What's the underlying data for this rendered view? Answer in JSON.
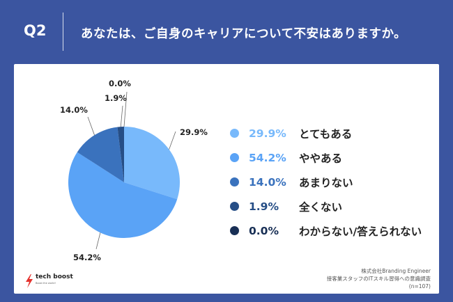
{
  "header": {
    "q_label": "Q2",
    "question": "あなたは、ご自身のキャリアについて不安はありますか。"
  },
  "chart_data": {
    "type": "pie",
    "title": "あなたは、ご自身のキャリアについて不安はありますか。",
    "start_angle_deg": 0,
    "direction": "clockwise",
    "slices": [
      {
        "label": "とてもある",
        "value": 29.9,
        "pct_text": "29.9%",
        "color": "#78b9fb"
      },
      {
        "label": "ややある",
        "value": 54.2,
        "pct_text": "54.2%",
        "color": "#5aa3f6"
      },
      {
        "label": "あまりない",
        "value": 14.0,
        "pct_text": "14.0%",
        "color": "#3a72bd"
      },
      {
        "label": "全くない",
        "value": 1.9,
        "pct_text": "1.9%",
        "color": "#264e86"
      },
      {
        "label": "わからない/答えられない",
        "value": 0.0,
        "pct_text": "0.0%",
        "color": "#182f55"
      }
    ]
  },
  "logo": {
    "name": "tech boost",
    "tagline": "Boost the world!",
    "color": "#e5322d"
  },
  "source": {
    "line1": "株式会社Branding Engineer",
    "line2": "接客業スタッフのITスキル習得への意識調査",
    "line3": "(n=107)"
  },
  "colors": {
    "background": "#3b55a0",
    "card": "#ffffff",
    "text": "#222222"
  }
}
